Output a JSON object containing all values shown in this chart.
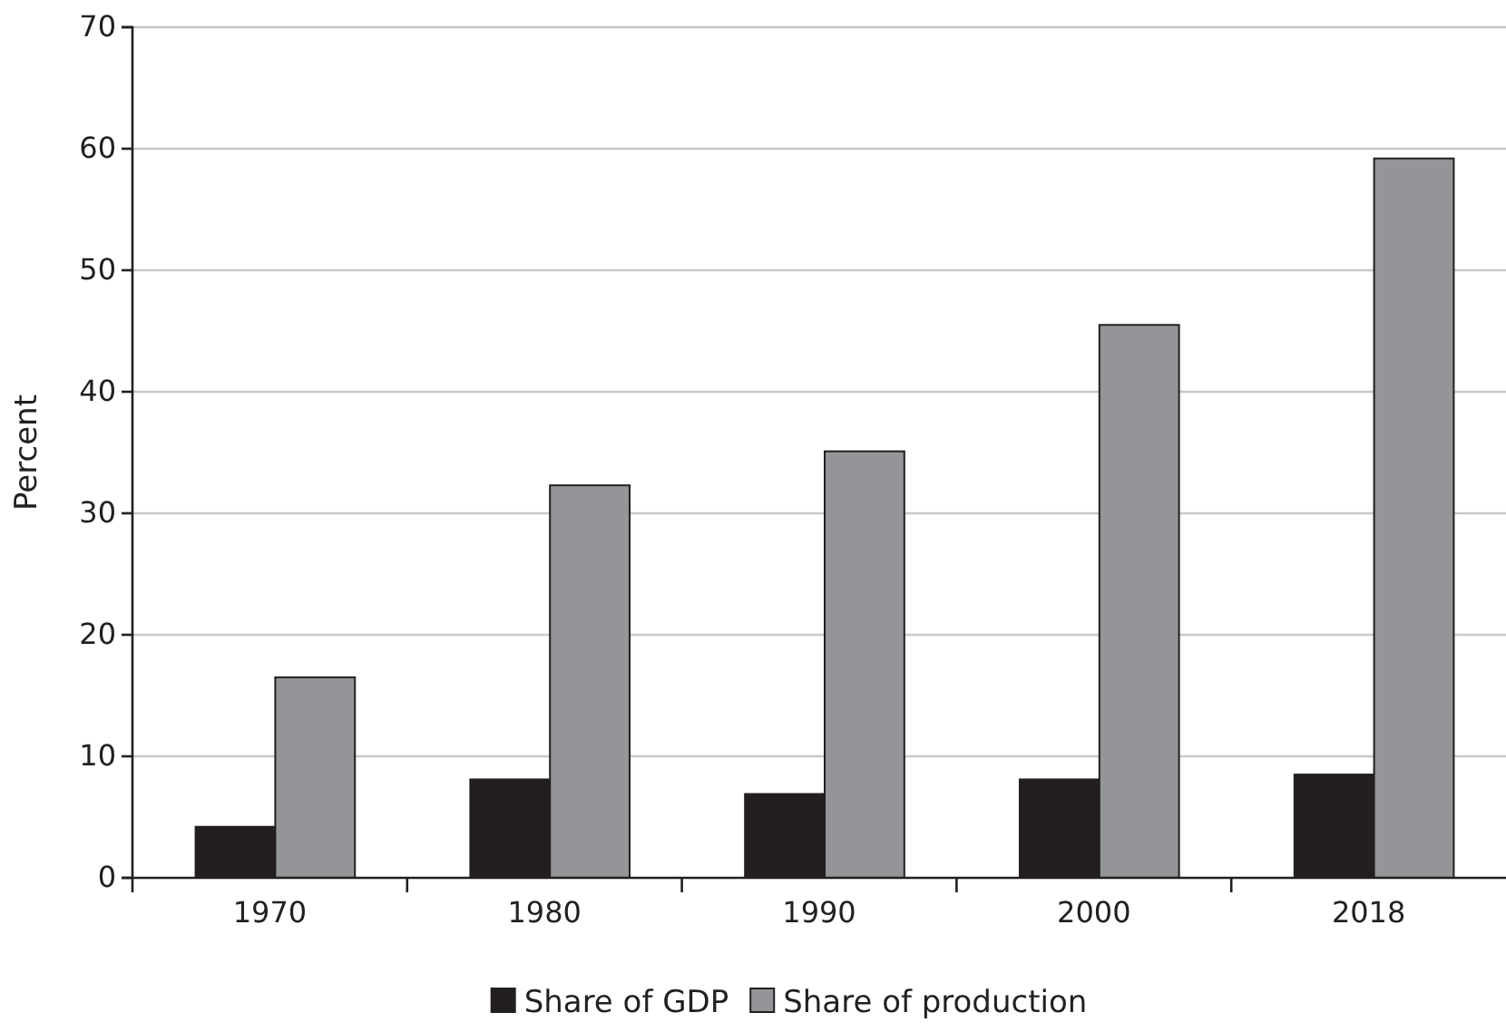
{
  "chart_data": {
    "type": "bar",
    "ylabel": "Percent",
    "categories": [
      "1970",
      "1980",
      "1990",
      "2000",
      "2018"
    ],
    "series": [
      {
        "name": "Share of GDP",
        "color": "#231f20",
        "values": [
          4.2,
          8.1,
          6.9,
          8.1,
          8.5
        ]
      },
      {
        "name": "Share of production",
        "color": "#939598",
        "values": [
          16.5,
          32.3,
          35.1,
          45.5,
          59.2
        ]
      }
    ],
    "ylim": [
      0,
      70
    ],
    "yticks": [
      0,
      10,
      20,
      30,
      40,
      50,
      60,
      70
    ],
    "grid": "y",
    "legend": "bottom"
  }
}
